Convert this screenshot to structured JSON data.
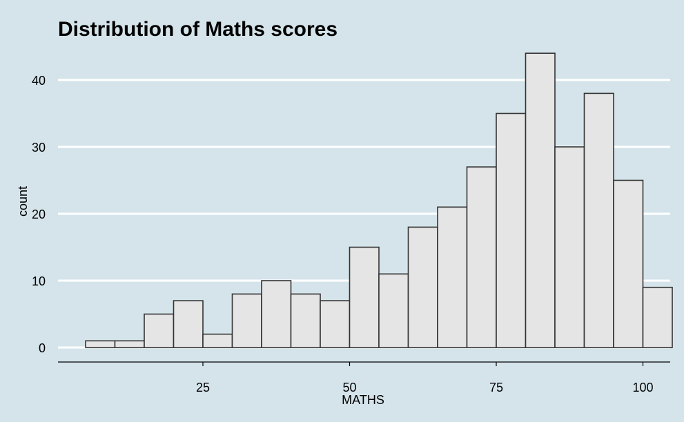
{
  "chart_data": {
    "type": "bar",
    "title": "Distribution of Maths scores",
    "xlabel": "MATHS",
    "ylabel": "count",
    "bin_width": 5,
    "bins": [
      {
        "x0": 5,
        "x1": 10,
        "count": 1
      },
      {
        "x0": 10,
        "x1": 15,
        "count": 1
      },
      {
        "x0": 15,
        "x1": 20,
        "count": 5
      },
      {
        "x0": 20,
        "x1": 25,
        "count": 7
      },
      {
        "x0": 25,
        "x1": 30,
        "count": 2
      },
      {
        "x0": 30,
        "x1": 35,
        "count": 8
      },
      {
        "x0": 35,
        "x1": 40,
        "count": 10
      },
      {
        "x0": 40,
        "x1": 45,
        "count": 8
      },
      {
        "x0": 45,
        "x1": 50,
        "count": 7
      },
      {
        "x0": 50,
        "x1": 55,
        "count": 15
      },
      {
        "x0": 55,
        "x1": 60,
        "count": 11
      },
      {
        "x0": 60,
        "x1": 65,
        "count": 18
      },
      {
        "x0": 65,
        "x1": 70,
        "count": 21
      },
      {
        "x0": 70,
        "x1": 75,
        "count": 27
      },
      {
        "x0": 75,
        "x1": 80,
        "count": 35
      },
      {
        "x0": 80,
        "x1": 85,
        "count": 44
      },
      {
        "x0": 85,
        "x1": 90,
        "count": 30
      },
      {
        "x0": 90,
        "x1": 95,
        "count": 38
      },
      {
        "x0": 95,
        "x1": 100,
        "count": 25
      },
      {
        "x0": 100,
        "x1": 105,
        "count": 9
      }
    ],
    "x_ticks": [
      {
        "value": 25,
        "label": "25"
      },
      {
        "value": 50,
        "label": "50"
      },
      {
        "value": 75,
        "label": "75"
      },
      {
        "value": 100,
        "label": "100"
      }
    ],
    "y_ticks": [
      {
        "value": 0,
        "label": "0"
      },
      {
        "value": 10,
        "label": "10"
      },
      {
        "value": 20,
        "label": "20"
      },
      {
        "value": 30,
        "label": "30"
      },
      {
        "value": 40,
        "label": "40"
      }
    ],
    "xlim": [
      0,
      105
    ],
    "ylim": [
      0,
      44
    ],
    "grid": "horizontal",
    "colors": {
      "background": "#d5e4eb",
      "bar_fill": "#e5e5e5",
      "bar_stroke": "#333333",
      "grid": "#ffffff",
      "axis_line": "#000000"
    }
  }
}
